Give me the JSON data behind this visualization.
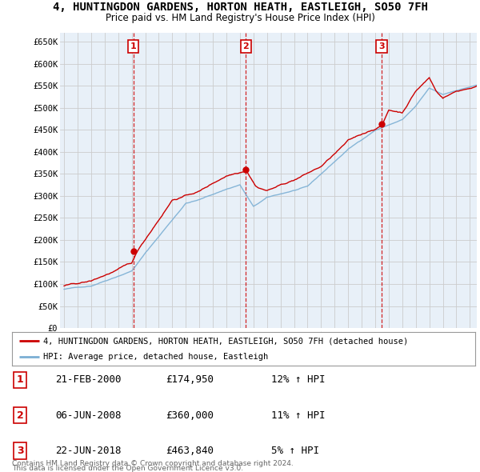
{
  "title_line1": "4, HUNTINGDON GARDENS, HORTON HEATH, EASTLEIGH, SO50 7FH",
  "title_line2": "Price paid vs. HM Land Registry's House Price Index (HPI)",
  "ylabel_ticks": [
    "£0",
    "£50K",
    "£100K",
    "£150K",
    "£200K",
    "£250K",
    "£300K",
    "£350K",
    "£400K",
    "£450K",
    "£500K",
    "£550K",
    "£600K",
    "£650K"
  ],
  "ytick_values": [
    0,
    50000,
    100000,
    150000,
    200000,
    250000,
    300000,
    350000,
    400000,
    450000,
    500000,
    550000,
    600000,
    650000
  ],
  "xlim_start": 1994.7,
  "xlim_end": 2025.5,
  "ylim_min": 0,
  "ylim_max": 670000,
  "vline_years": [
    2000.13,
    2008.45,
    2018.47
  ],
  "sale_prices": [
    174950,
    360000,
    463840
  ],
  "sale_labels": [
    "1",
    "2",
    "3"
  ],
  "legend_line1": "4, HUNTINGDON GARDENS, HORTON HEATH, EASTLEIGH, SO50 7FH (detached house)",
  "legend_line2": "HPI: Average price, detached house, Eastleigh",
  "footer_line1": "Contains HM Land Registry data © Crown copyright and database right 2024.",
  "footer_line2": "This data is licensed under the Open Government Licence v3.0.",
  "table_rows": [
    {
      "num": "1",
      "date": "21-FEB-2000",
      "price": "£174,950",
      "change": "12% ↑ HPI"
    },
    {
      "num": "2",
      "date": "06-JUN-2008",
      "price": "£360,000",
      "change": "11% ↑ HPI"
    },
    {
      "num": "3",
      "date": "22-JUN-2018",
      "price": "£463,840",
      "change": "5% ↑ HPI"
    }
  ],
  "red_color": "#cc0000",
  "blue_color": "#7bafd4",
  "blue_fill": "#dce9f5",
  "grid_color": "#cccccc",
  "bg_color": "#ffffff",
  "chart_bg": "#e8f0f8"
}
